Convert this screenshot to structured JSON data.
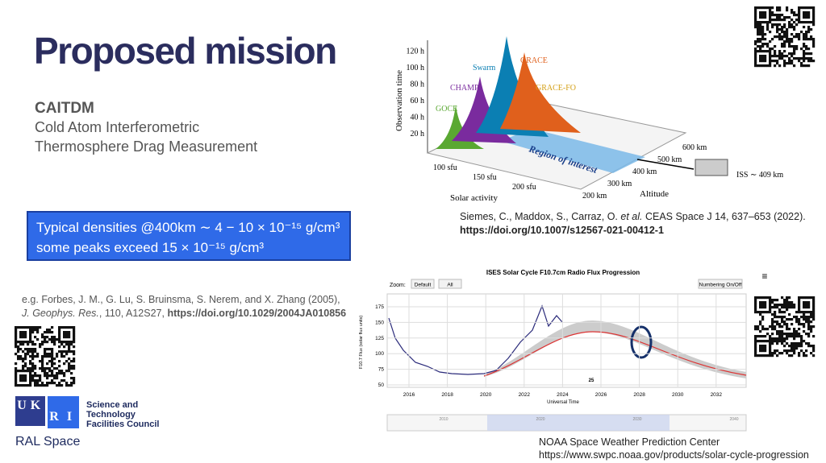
{
  "title": "Proposed mission",
  "acronym": "CAITDM",
  "subtitle_lines": [
    "Cold Atom Interferometric",
    "Thermosphere Drag Measurement"
  ],
  "density_box": [
    "Typical densities @400km ∼ 4 − 10 × 10⁻¹⁵ g/cm³",
    "some peaks exceed 15 × 10⁻¹⁵ g/cm³"
  ],
  "reference_forbes": {
    "text": "e.g. Forbes, J. M., G. Lu, S. Bruinsma, S. Nerem, and X. Zhang (2005),",
    "journal": "J. Geophys. Res.",
    "rest": ", 110, A12S27, ",
    "doi": "https://doi.org/10.1029/2004JA010856"
  },
  "reference_siemes": {
    "authors": "Siemes, C., Maddox, S., Carraz, O. ",
    "etal": "et al.",
    "rest": " CEAS Space J 14, 637–653 (2022).",
    "doi": "https://doi.org/10.1007/s12567-021-00412-1"
  },
  "figure_3d": {
    "y_label": "Observation time",
    "y_ticks": [
      "20 h",
      "40 h",
      "60 h",
      "80 h",
      "100 h",
      "120 h"
    ],
    "x_label": "Solar activity",
    "x_ticks": [
      "100 sfu",
      "150 sfu",
      "200 sfu"
    ],
    "z_label": "Altitude",
    "z_ticks": [
      "200 km",
      "300 km",
      "400 km",
      "500 km",
      "600 km"
    ],
    "missions": [
      "GOCE",
      "CHAMP",
      "Swarm",
      "GRACE",
      "GRACE-FO"
    ],
    "region": "Region of interest",
    "iss": "ISS ∼ 409 km"
  },
  "figure_solar": {
    "title": "ISES Solar Cycle F10.7cm Radio Flux Progression",
    "zoom": "Zoom:",
    "buttons": [
      "Default",
      "All"
    ],
    "toggle": "Numbering On/Off",
    "menu": "≡",
    "y_label": "F10.7 Flux (solar flux units)",
    "y_ticks": [
      "50",
      "75",
      "100",
      "125",
      "150",
      "175"
    ],
    "x_ticks": [
      "2016",
      "2018",
      "2020",
      "2022",
      "2024",
      "2026",
      "2028",
      "2030",
      "2032"
    ],
    "x_label": "Universal Time",
    "annotation": "25",
    "nav_ticks": [
      "2010",
      "2020",
      "2030",
      "2040"
    ]
  },
  "credit": {
    "name": "NOAA Space Weather Prediction Center",
    "url": "https://www.swpc.noaa.gov/products/solar-cycle-progression"
  },
  "logo": {
    "letters": [
      "U",
      "K",
      "R",
      "I"
    ],
    "lines": [
      "Science and",
      "Technology",
      "Facilities Council"
    ],
    "org": "RAL Space"
  }
}
